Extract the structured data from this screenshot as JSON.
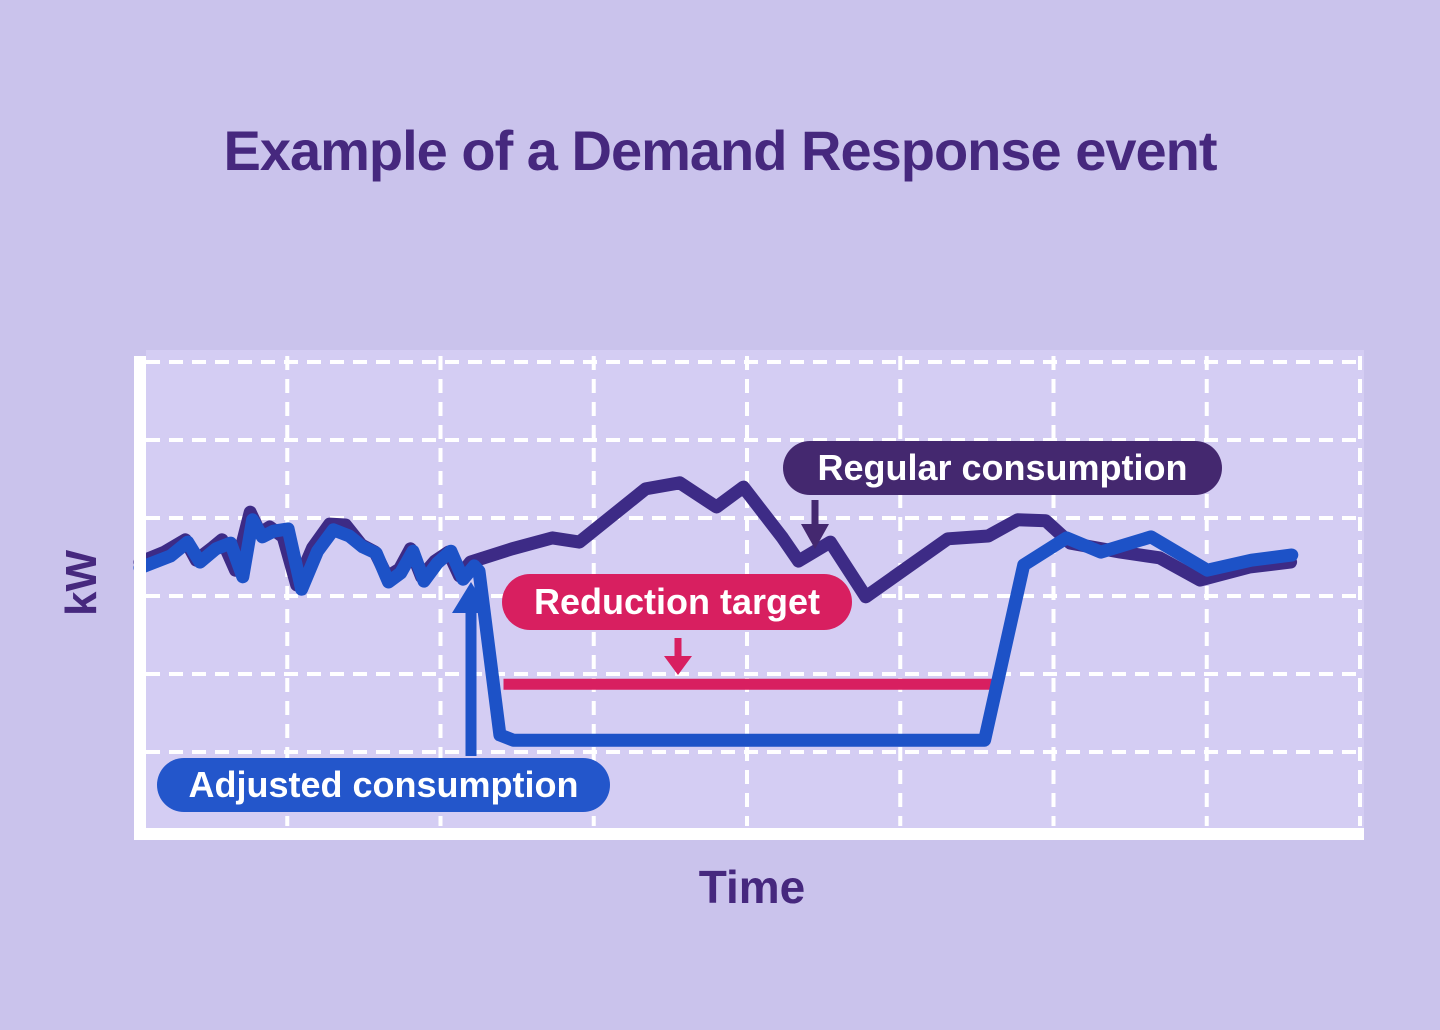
{
  "title": "Example of a Demand Response event",
  "axes": {
    "y_label": "kW",
    "x_label": "Time"
  },
  "badges": {
    "regular": "Regular consumption",
    "reduction": "Reduction target",
    "adjusted": "Adjusted consumption"
  },
  "colors": {
    "background": "#cac3ec",
    "plot_background": "#d4cdf3",
    "grid": "#ffffff",
    "axis": "#ffffff",
    "heading": "#46287e",
    "regular_line": "#3d2b86",
    "regular_badge": "#44286f",
    "adjusted_line": "#1d52c7",
    "adjusted_badge": "#2356cb",
    "reduction": "#d81f60"
  },
  "chart_data": {
    "type": "line",
    "title": "Example of a Demand Response event",
    "xlabel": "Time",
    "ylabel": "kW",
    "xlim": [
      0,
      100
    ],
    "ylim": [
      0,
      100
    ],
    "grid": true,
    "legend_position": "inline-badges",
    "note": "Axes carry no numeric ticks; point coordinates are percentages of the plot area (x: share of time axis, y: share of kW axis).",
    "series": [
      {
        "name": "Regular consumption",
        "color": "#3d2b86",
        "points": [
          [
            0,
            56.4
          ],
          [
            2,
            58.5
          ],
          [
            3.7,
            61.1
          ],
          [
            4.6,
            56.8
          ],
          [
            5.9,
            59.4
          ],
          [
            6.7,
            61.1
          ],
          [
            7.8,
            54.7
          ],
          [
            9,
            66.9
          ],
          [
            9.8,
            62.5
          ],
          [
            10.6,
            63.8
          ],
          [
            11.7,
            61.7
          ],
          [
            12.8,
            51.6
          ],
          [
            14.1,
            59.4
          ],
          [
            15.5,
            64.4
          ],
          [
            16.8,
            64.2
          ],
          [
            18.1,
            60
          ],
          [
            19.2,
            58.5
          ],
          [
            20.2,
            53.3
          ],
          [
            21.2,
            54.9
          ],
          [
            22.1,
            59.2
          ],
          [
            23,
            53.3
          ],
          [
            24.1,
            56.6
          ],
          [
            25.2,
            58.5
          ],
          [
            26.1,
            53.5
          ],
          [
            27,
            56.4
          ],
          [
            30.4,
            59.2
          ],
          [
            33.7,
            61.5
          ],
          [
            35.9,
            60.6
          ],
          [
            41.3,
            71.8
          ],
          [
            44.1,
            73.1
          ],
          [
            47.1,
            68
          ],
          [
            49.3,
            72.2
          ],
          [
            52.5,
            61.5
          ],
          [
            53.8,
            56.6
          ],
          [
            56.4,
            60.6
          ],
          [
            59.3,
            49.1
          ],
          [
            66,
            61.3
          ],
          [
            69.3,
            61.9
          ],
          [
            71.7,
            65.3
          ],
          [
            74,
            65.1
          ],
          [
            76,
            60.4
          ],
          [
            80.1,
            58.5
          ],
          [
            83.3,
            57.3
          ],
          [
            86.6,
            52.6
          ],
          [
            90.7,
            55.4
          ],
          [
            94,
            56.4
          ]
        ]
      },
      {
        "name": "Adjusted consumption",
        "color": "#1d52c7",
        "points": [
          [
            0,
            55.2
          ],
          [
            2.5,
            57.7
          ],
          [
            3.9,
            60.6
          ],
          [
            4.9,
            56.4
          ],
          [
            6.2,
            59.2
          ],
          [
            7.4,
            60.4
          ],
          [
            8.4,
            53.3
          ],
          [
            9.2,
            65.3
          ],
          [
            10,
            61.7
          ],
          [
            10.9,
            62.9
          ],
          [
            12.1,
            63.4
          ],
          [
            13.2,
            50.7
          ],
          [
            14.5,
            58.7
          ],
          [
            15.8,
            63.2
          ],
          [
            17.1,
            61.9
          ],
          [
            18.2,
            59.6
          ],
          [
            19.3,
            58.3
          ],
          [
            20.3,
            52.2
          ],
          [
            21.3,
            54.1
          ],
          [
            22.3,
            58.7
          ],
          [
            23.2,
            52.4
          ],
          [
            24.3,
            56.2
          ],
          [
            25.4,
            58.7
          ],
          [
            26.4,
            52.8
          ],
          [
            27.3,
            55.6
          ],
          [
            27.7,
            54.5
          ],
          [
            29.4,
            20
          ],
          [
            30.5,
            18.9
          ],
          [
            69,
            18.9
          ],
          [
            72.2,
            55.8
          ],
          [
            75.7,
            61.5
          ],
          [
            78.5,
            58.5
          ],
          [
            82.6,
            61.7
          ],
          [
            87.2,
            54.7
          ],
          [
            90.8,
            56.8
          ],
          [
            94.1,
            57.9
          ]
        ]
      },
      {
        "name": "Reduction target",
        "color": "#d81f60",
        "points": [
          [
            29.7,
            30.7
          ],
          [
            69.8,
            30.7
          ]
        ]
      }
    ]
  }
}
